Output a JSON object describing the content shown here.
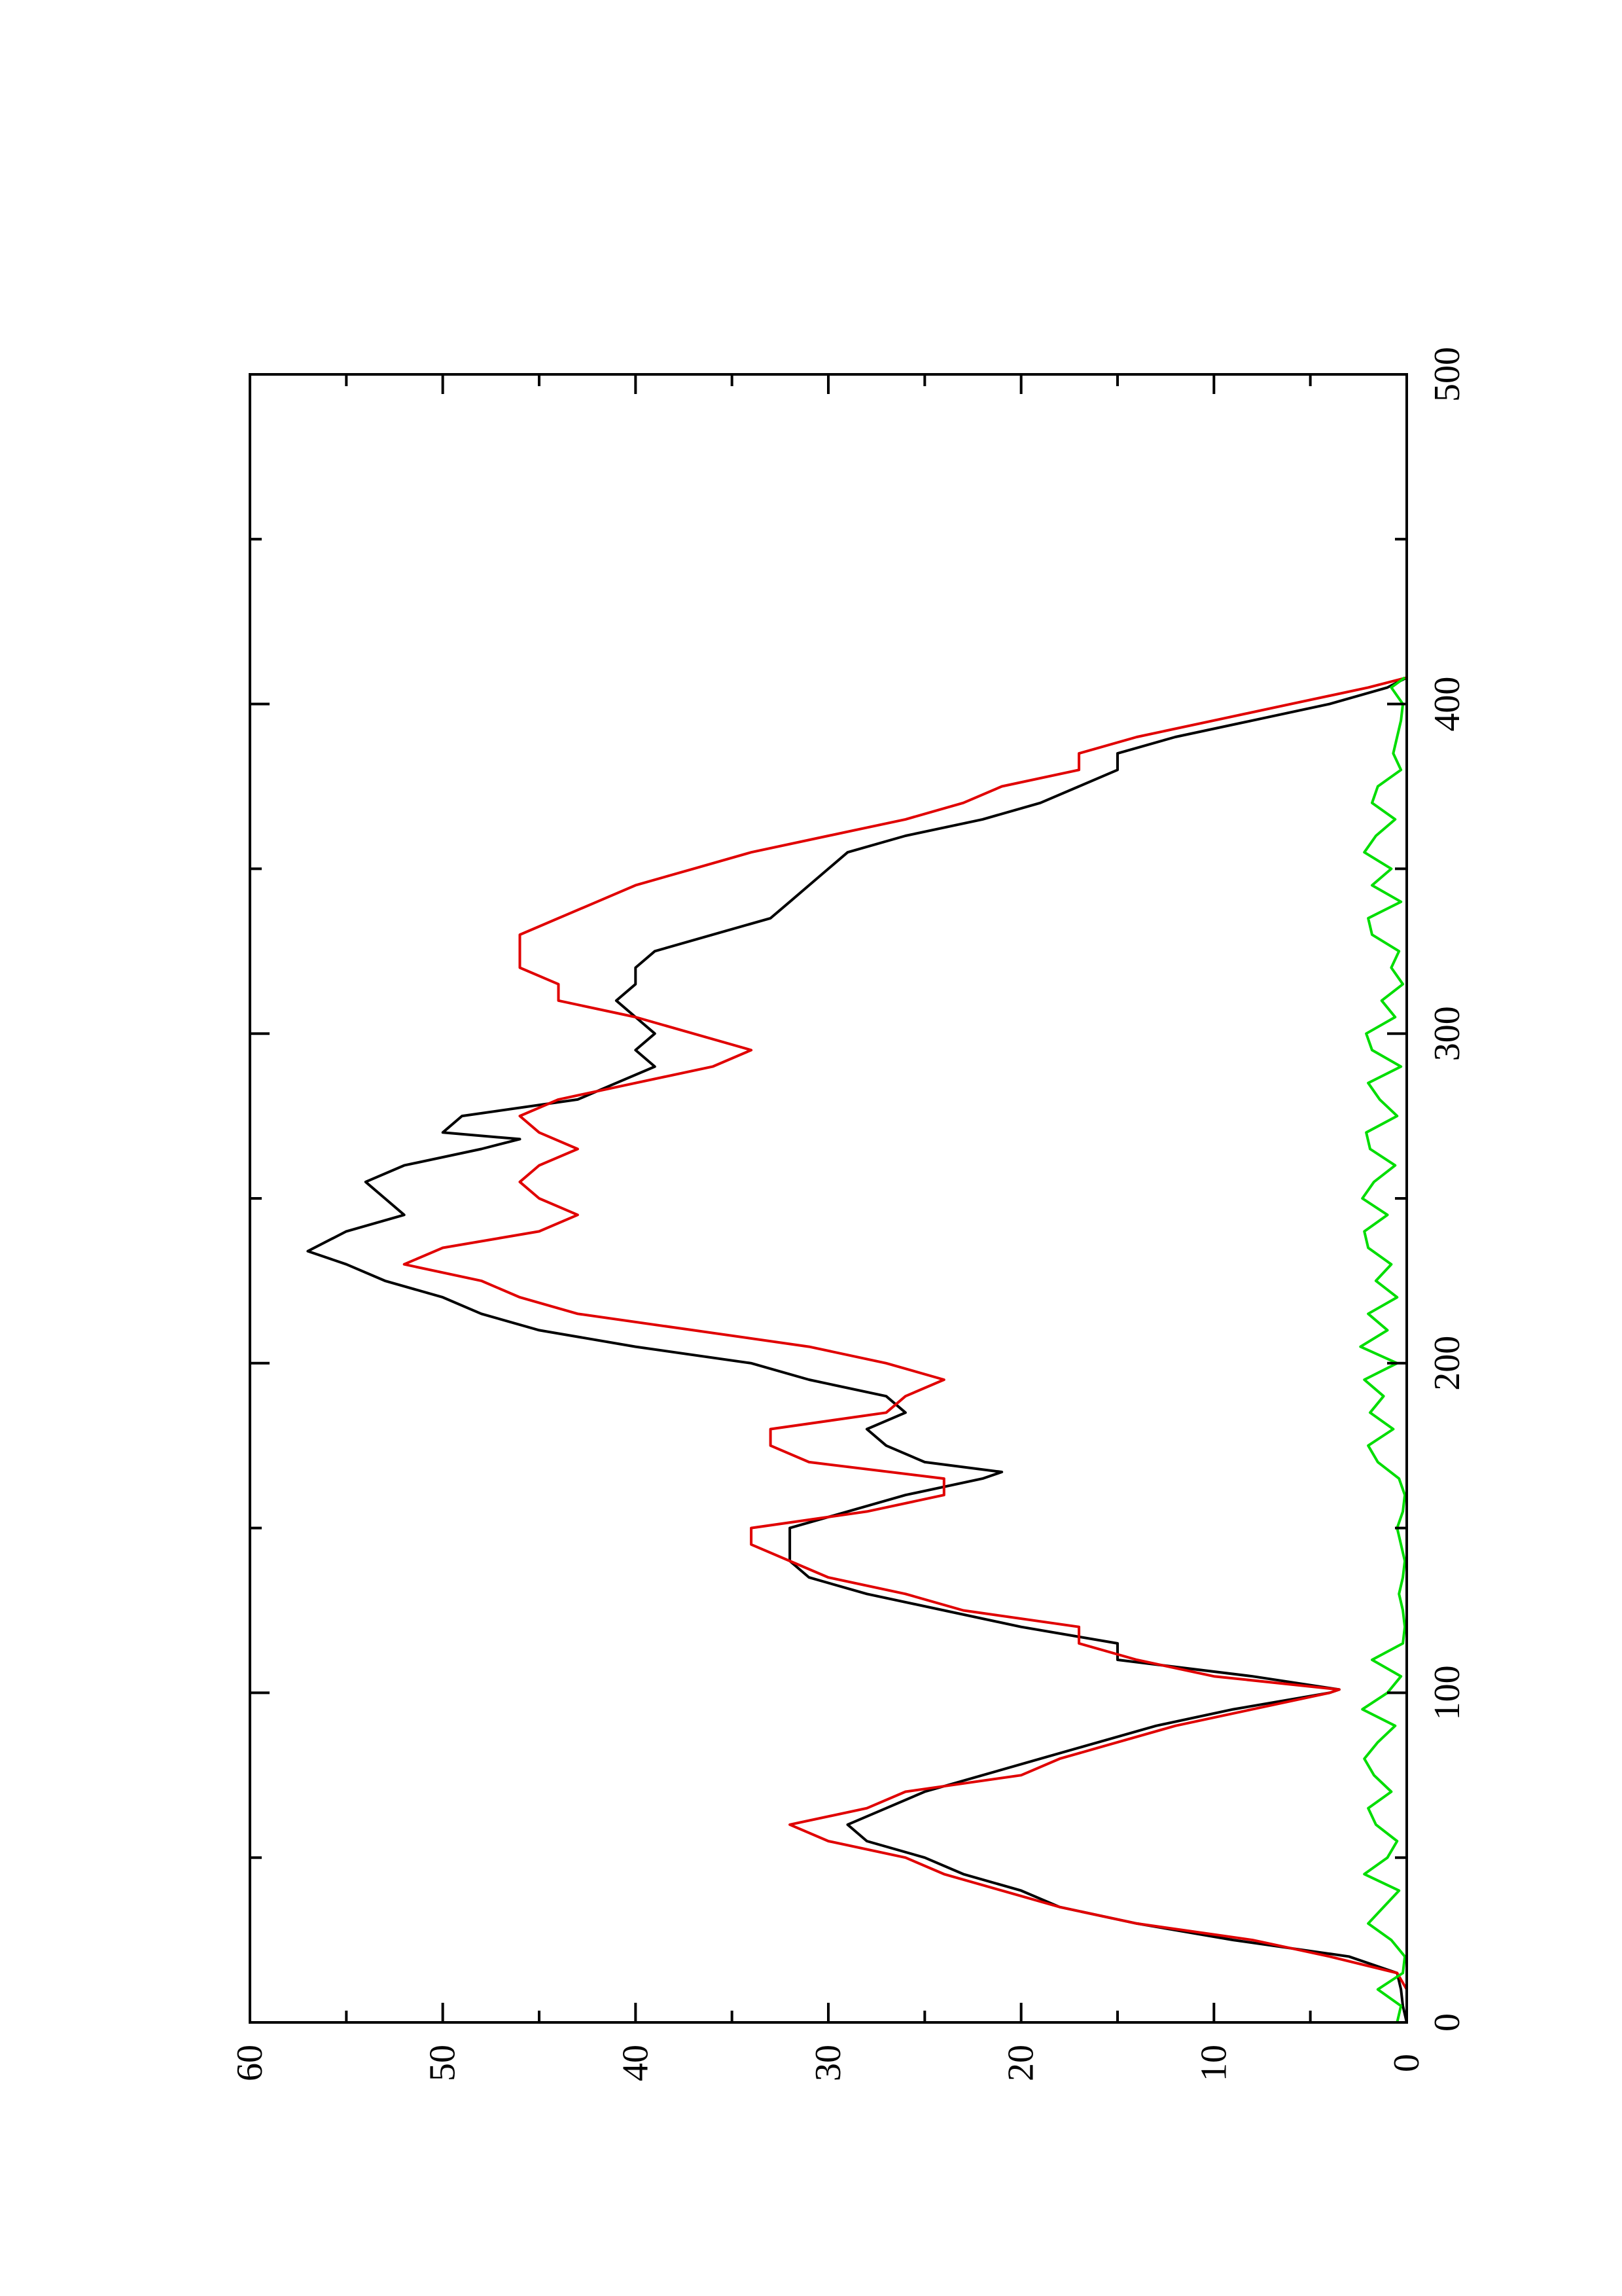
{
  "chart_data": {
    "type": "line",
    "orientation": "rotated-90-ccw",
    "title": "",
    "xlabel": "",
    "ylabel": "",
    "xlim": [
      0,
      500
    ],
    "ylim": [
      0,
      60
    ],
    "x_ticks": [
      0,
      100,
      200,
      300,
      400,
      500
    ],
    "x_tick_labels": [
      "0",
      "100",
      "200",
      "300",
      "400",
      "500"
    ],
    "y_ticks": [
      0,
      10,
      20,
      30,
      40,
      50,
      60
    ],
    "y_tick_labels": [
      "0",
      "10",
      "20",
      "30",
      "40",
      "50",
      "60"
    ],
    "grid": false,
    "legend": "none",
    "series": [
      {
        "color": "#000000",
        "x": [
          0,
          5,
          10,
          15,
          20,
          25,
          30,
          35,
          40,
          45,
          50,
          55,
          60,
          65,
          70,
          75,
          80,
          85,
          90,
          95,
          100,
          101,
          105,
          110,
          115,
          120,
          125,
          130,
          135,
          140,
          145,
          150,
          155,
          160,
          165,
          167,
          170,
          175,
          180,
          185,
          190,
          195,
          200,
          205,
          210,
          215,
          220,
          225,
          230,
          234,
          240,
          245,
          250,
          255,
          260,
          265,
          268,
          270,
          275,
          280,
          285,
          290,
          295,
          300,
          305,
          310,
          315,
          320,
          325,
          330,
          335,
          340,
          345,
          350,
          355,
          360,
          365,
          370,
          375,
          380,
          385,
          390,
          395,
          400,
          405,
          408
        ],
        "y": [
          0,
          0.2,
          0.3,
          0.5,
          3,
          9,
          14,
          18,
          20,
          23,
          25,
          28,
          29,
          27,
          25,
          22,
          19,
          16,
          13,
          9,
          4,
          3.5,
          8,
          15,
          15,
          20,
          24,
          28,
          31,
          32,
          32,
          32,
          29,
          26,
          22,
          21,
          25,
          27,
          28,
          26,
          27,
          31,
          34,
          40,
          45,
          48,
          50,
          53,
          55,
          57,
          55,
          52,
          53,
          54,
          52,
          48,
          46,
          50,
          49,
          43,
          41,
          39,
          40,
          39,
          40,
          41,
          40,
          40,
          39,
          36,
          33,
          32,
          31,
          30,
          29,
          26,
          22,
          19,
          17,
          15,
          15,
          12,
          8,
          4,
          1,
          0
        ]
      },
      {
        "color": "#e00000",
        "x": [
          0,
          5,
          10,
          15,
          20,
          25,
          30,
          35,
          40,
          45,
          50,
          55,
          60,
          65,
          70,
          75,
          80,
          85,
          90,
          95,
          100,
          101,
          105,
          110,
          115,
          120,
          125,
          130,
          135,
          140,
          145,
          150,
          155,
          160,
          165,
          170,
          175,
          180,
          185,
          190,
          195,
          200,
          205,
          210,
          215,
          220,
          225,
          230,
          235,
          240,
          245,
          250,
          255,
          260,
          265,
          270,
          275,
          280,
          285,
          290,
          295,
          300,
          305,
          310,
          315,
          320,
          325,
          330,
          335,
          340,
          345,
          350,
          355,
          360,
          365,
          370,
          375,
          380,
          385,
          390,
          395,
          400,
          405,
          408
        ],
        "y": [
          0,
          0,
          0,
          0.5,
          4,
          8,
          14,
          18,
          21,
          24,
          26,
          30,
          32,
          28,
          26,
          20,
          18,
          15,
          12,
          8,
          4,
          3.5,
          10,
          14,
          17,
          17,
          23,
          26,
          30,
          32,
          34,
          34,
          28,
          24,
          24,
          31,
          33,
          33,
          27,
          26,
          24,
          27,
          31,
          37,
          43,
          46,
          48,
          52,
          50,
          45,
          43,
          45,
          46,
          45,
          43,
          45,
          46,
          44,
          40,
          36,
          34,
          37,
          40,
          44,
          44,
          46,
          46,
          46,
          44,
          42,
          40,
          37,
          34,
          30,
          26,
          23,
          21,
          17,
          17,
          14,
          10,
          6,
          2,
          0
        ]
      },
      {
        "color": "#00dd00",
        "x": [
          0,
          5,
          10,
          15,
          20,
          25,
          30,
          35,
          40,
          45,
          50,
          55,
          60,
          65,
          70,
          75,
          80,
          85,
          90,
          95,
          100,
          105,
          110,
          115,
          120,
          125,
          130,
          135,
          140,
          145,
          150,
          155,
          160,
          165,
          170,
          175,
          180,
          185,
          190,
          195,
          200,
          205,
          210,
          215,
          220,
          225,
          230,
          235,
          240,
          245,
          250,
          255,
          260,
          265,
          270,
          275,
          280,
          285,
          290,
          295,
          300,
          305,
          310,
          315,
          320,
          325,
          330,
          335,
          340,
          345,
          350,
          355,
          360,
          365,
          370,
          375,
          380,
          385,
          390,
          395,
          400,
          405,
          408
        ],
        "y": [
          0.5,
          0.3,
          1.5,
          0.2,
          0.1,
          0.8,
          2.0,
          1.2,
          0.4,
          2.2,
          1.0,
          0.5,
          1.6,
          2.0,
          0.8,
          1.7,
          2.2,
          1.5,
          0.6,
          2.3,
          1.0,
          0.3,
          1.8,
          0.2,
          0.1,
          0.2,
          0.4,
          0.2,
          0.1,
          0.3,
          0.5,
          0.2,
          0.1,
          0.4,
          1.5,
          2.0,
          0.7,
          1.9,
          1.2,
          2.2,
          0.5,
          2.4,
          1.0,
          2.0,
          0.5,
          1.6,
          0.8,
          2.0,
          2.2,
          1.0,
          2.3,
          1.7,
          0.6,
          1.9,
          2.1,
          0.5,
          1.4,
          2.0,
          0.3,
          1.8,
          2.1,
          0.6,
          1.3,
          0.2,
          0.8,
          0.4,
          1.8,
          2.0,
          0.3,
          1.8,
          0.8,
          2.2,
          1.6,
          0.6,
          1.8,
          1.5,
          0.3,
          0.7,
          0.5,
          0.3,
          0.2,
          0.8,
          0.1
        ]
      }
    ]
  }
}
